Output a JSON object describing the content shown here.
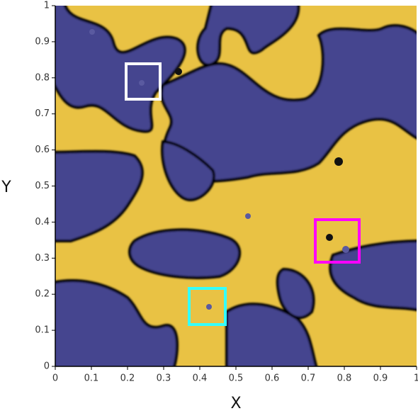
{
  "chart_data": {
    "type": "contour",
    "xlabel": "X",
    "ylabel": "Y",
    "xlim": [
      0,
      1
    ],
    "ylim": [
      0,
      1
    ],
    "xticks": [
      0,
      0.1,
      0.2,
      0.3,
      0.4,
      0.5,
      0.6,
      0.7,
      0.8,
      0.9,
      1
    ],
    "yticks": [
      0,
      0.1,
      0.2,
      0.3,
      0.4,
      0.5,
      0.6,
      0.7,
      0.8,
      0.9,
      1
    ],
    "grid": false
  }
}
